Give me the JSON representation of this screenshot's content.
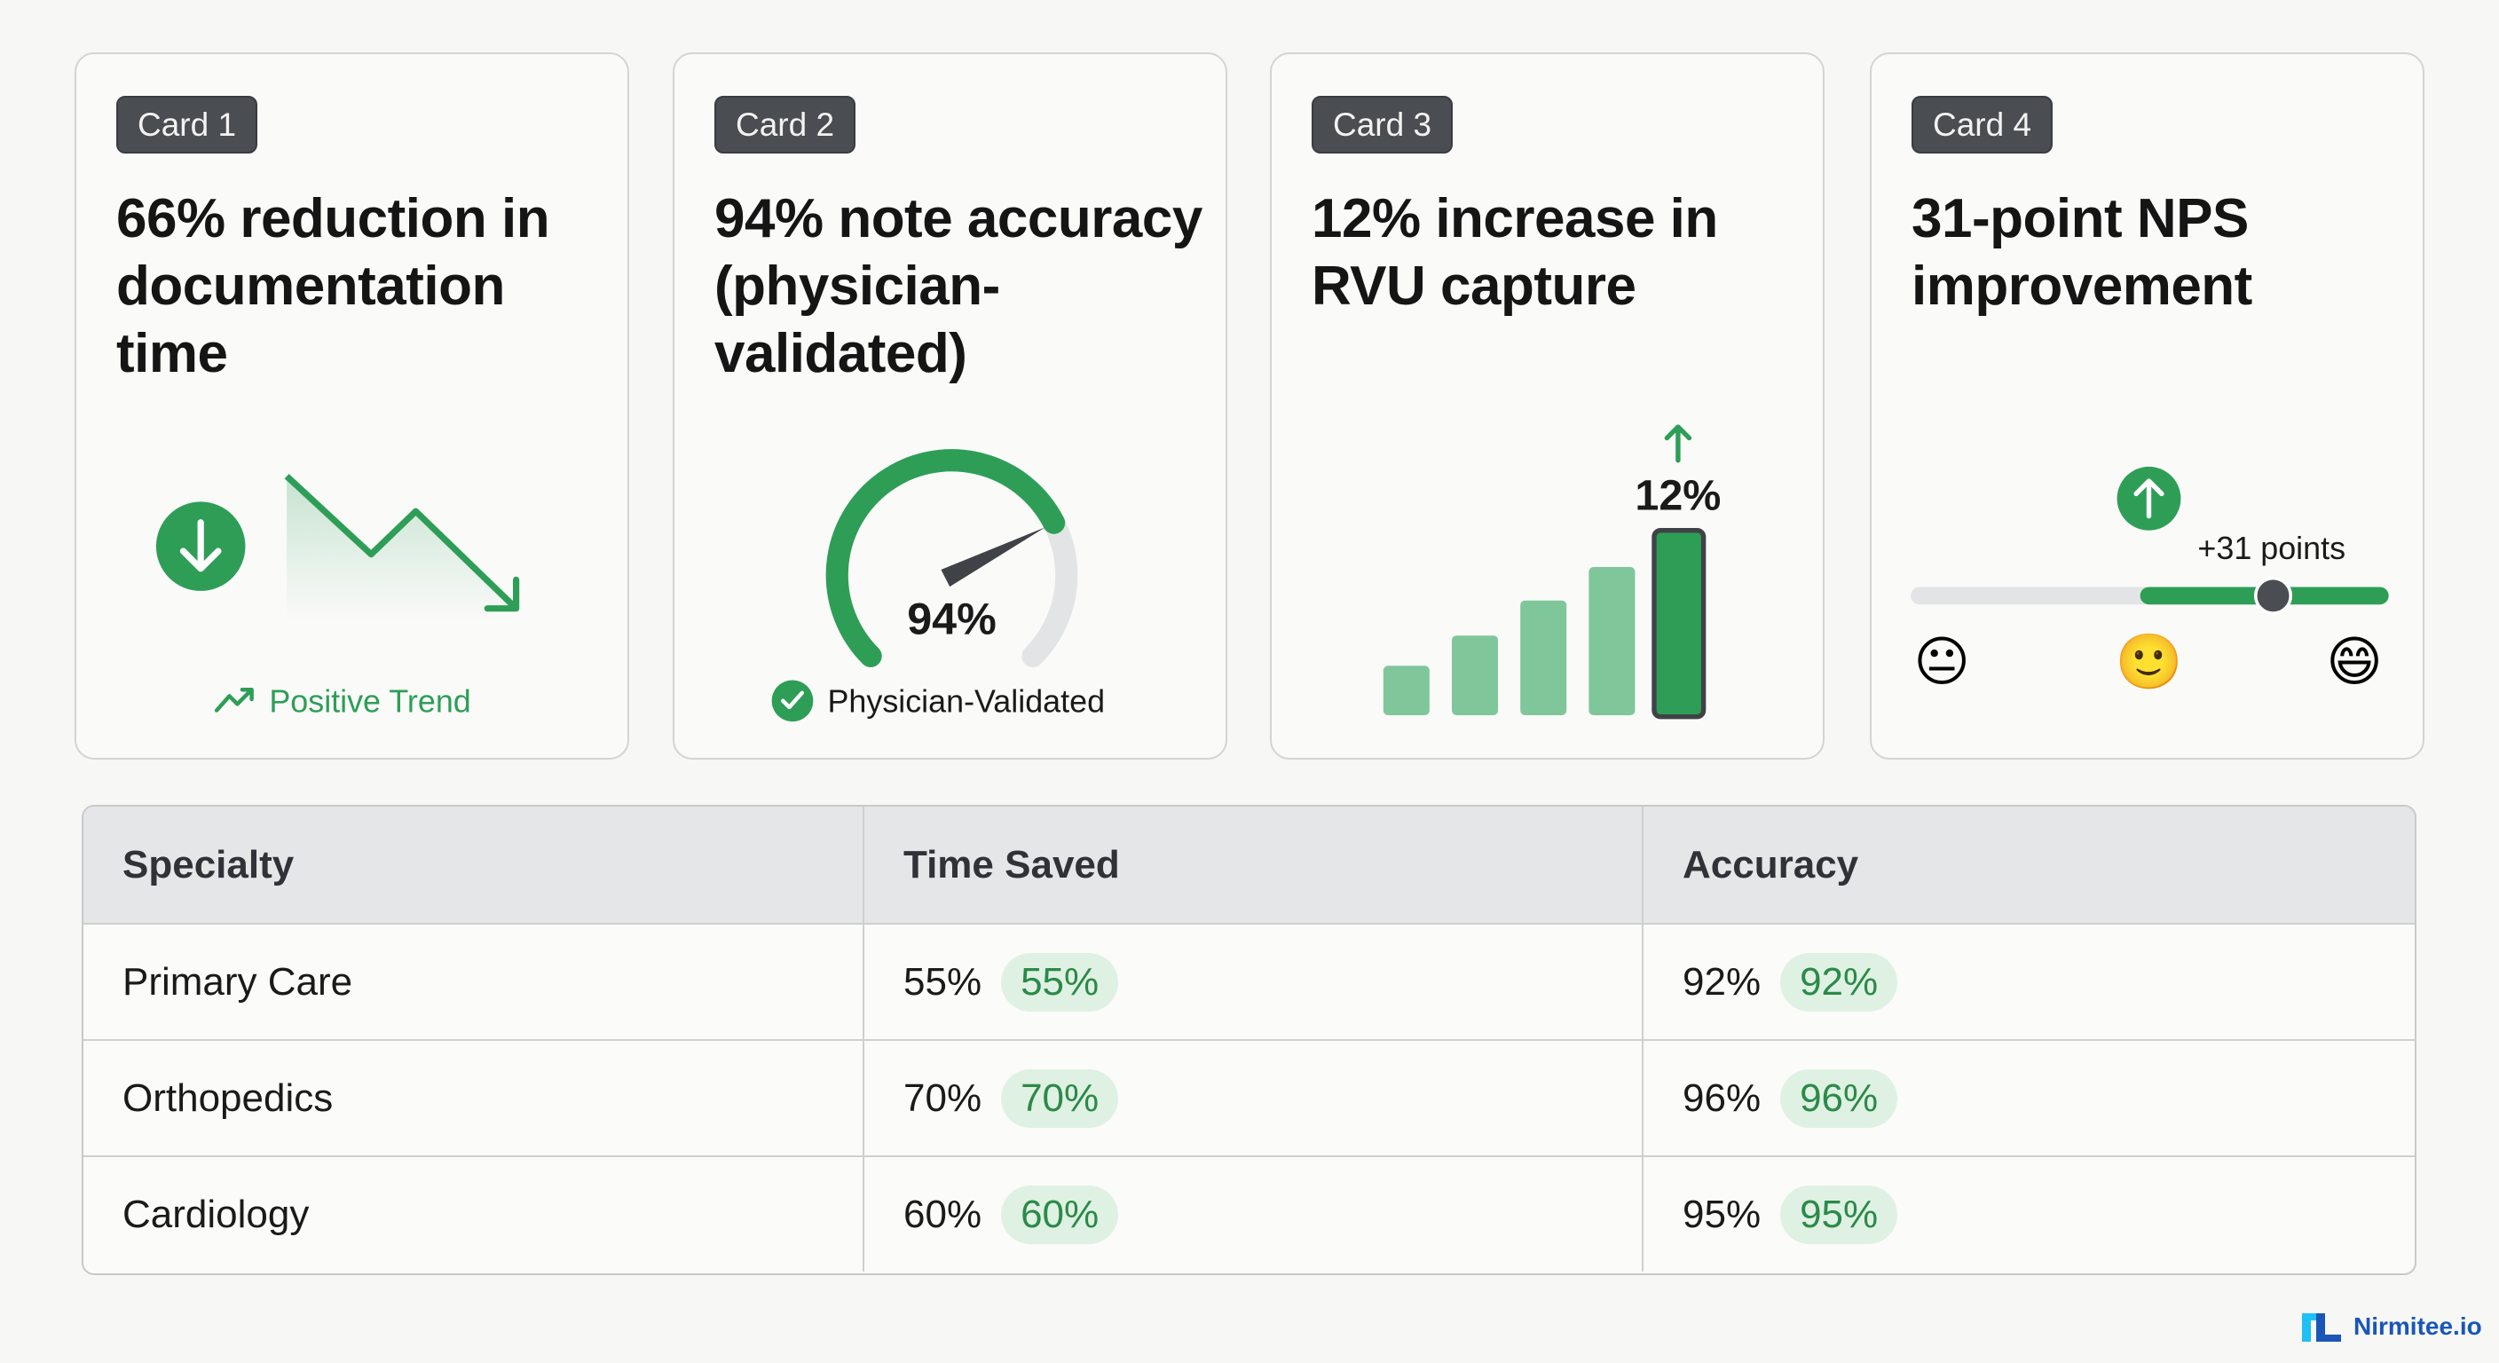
{
  "cards": [
    {
      "badge": "Card 1",
      "title": "66% reduction in documentation time",
      "footer": "Positive Trend",
      "icon": "arrow-down-circle-icon"
    },
    {
      "badge": "Card 2",
      "title": "94% note accuracy (physician-validated)",
      "gauge_label": "94%",
      "gauge_value": 94,
      "footer": "Physician-Validated",
      "icon": "check-circle-icon"
    },
    {
      "badge": "Card 3",
      "title": "12% increase in RVU capture",
      "bar_label": "12%",
      "icon": "arrow-up-icon"
    },
    {
      "badge": "Card 4",
      "title": "31-point NPS improvement",
      "slider_label": "+31 points",
      "slider_value_fraction": 0.77,
      "icon": "arrow-up-circle-icon",
      "emojis": [
        "😐",
        "🙂",
        "😄"
      ]
    }
  ],
  "table": {
    "headers": [
      "Specialty",
      "Time Saved",
      "Accuracy"
    ],
    "rows": [
      {
        "specialty": "Primary Care",
        "time": "55%",
        "time_badge": "55%",
        "acc": "92%",
        "acc_badge": "92%"
      },
      {
        "specialty": "Orthopedics",
        "time": "70%",
        "time_badge": "70%",
        "acc": "96%",
        "acc_badge": "96%"
      },
      {
        "specialty": "Cardiology",
        "time": "60%",
        "time_badge": "60%",
        "acc": "95%",
        "acc_badge": "95%"
      }
    ]
  },
  "brand": {
    "name": "Nirmitee.io"
  },
  "colors": {
    "green": "#2e9e57",
    "light_green": "#7fc79a",
    "badge": "#4a4d52",
    "pill_bg": "#dff1e3",
    "brand_blue": "#1a56b8"
  }
}
